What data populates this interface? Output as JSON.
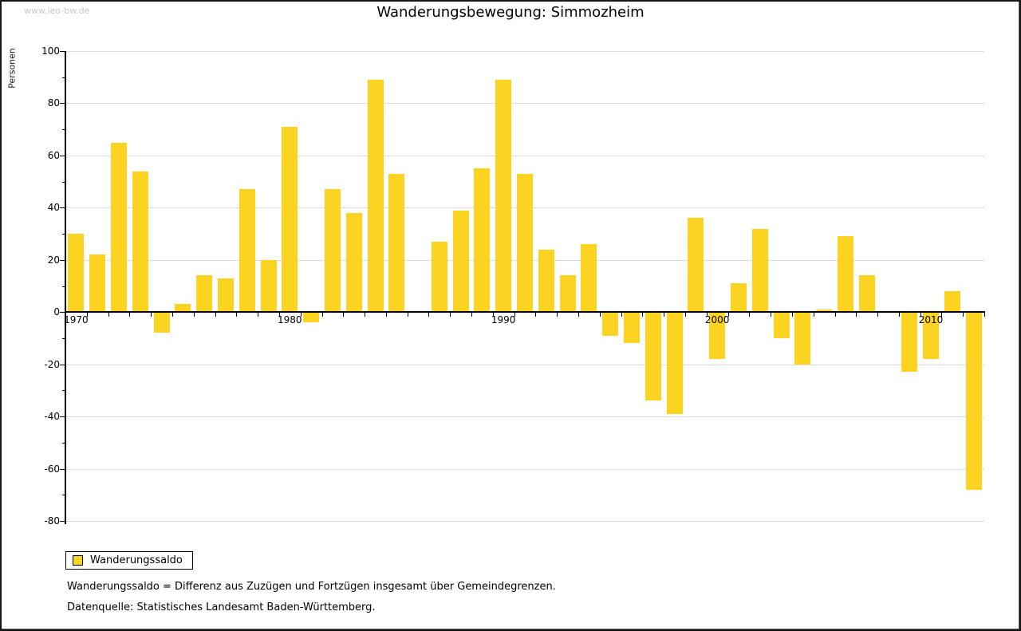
{
  "watermark": "www.leo-bw.de",
  "title": "Wanderungsbewegung: Simmozheim",
  "y_axis_label": "Personen",
  "legend": {
    "label": "Wanderungssaldo"
  },
  "footnotes": [
    "Wanderungssaldo = Differenz aus Zuzügen und Fortzügen insgesamt über Gemeindegrenzen.",
    "Datenquelle: Statistisches Landesamt Baden-Württemberg."
  ],
  "colors": {
    "bar": "#fcd320",
    "grid": "#dcdcdc",
    "axis": "#000000",
    "watermark": "#c9c9c9"
  },
  "chart_data": {
    "type": "bar",
    "title": "Wanderungsbewegung: Simmozheim",
    "xlabel": "",
    "ylabel": "Personen",
    "categories": [
      1970,
      1971,
      1972,
      1973,
      1974,
      1975,
      1976,
      1977,
      1978,
      1979,
      1980,
      1981,
      1982,
      1983,
      1984,
      1985,
      1986,
      1987,
      1988,
      1989,
      1990,
      1991,
      1992,
      1993,
      1994,
      1995,
      1996,
      1997,
      1998,
      1999,
      2000,
      2001,
      2002,
      2003,
      2004,
      2005,
      2006,
      2007,
      2008,
      2009,
      2010,
      2011,
      2012
    ],
    "series": [
      {
        "name": "Wanderungssaldo",
        "values": [
          30,
          22,
          65,
          54,
          -8,
          3,
          14,
          13,
          47,
          20,
          71,
          -4,
          47,
          38,
          89,
          53,
          0,
          27,
          39,
          55,
          89,
          53,
          24,
          14,
          26,
          -9,
          -12,
          -34,
          -39,
          36,
          -18,
          11,
          32,
          -10,
          -20,
          1,
          29,
          14,
          0,
          -23,
          -18,
          8,
          -68
        ]
      }
    ],
    "ylim": [
      -80,
      100
    ],
    "ytick_step": 20,
    "ytick_minor_step": 10,
    "ytick_labels": [
      100,
      80,
      60,
      40,
      20,
      0,
      -20,
      -40,
      -60,
      -80
    ],
    "xtick_label_years": [
      1970,
      1980,
      1990,
      2000,
      2010
    ],
    "grid": true,
    "legend_position": "bottom-left"
  }
}
